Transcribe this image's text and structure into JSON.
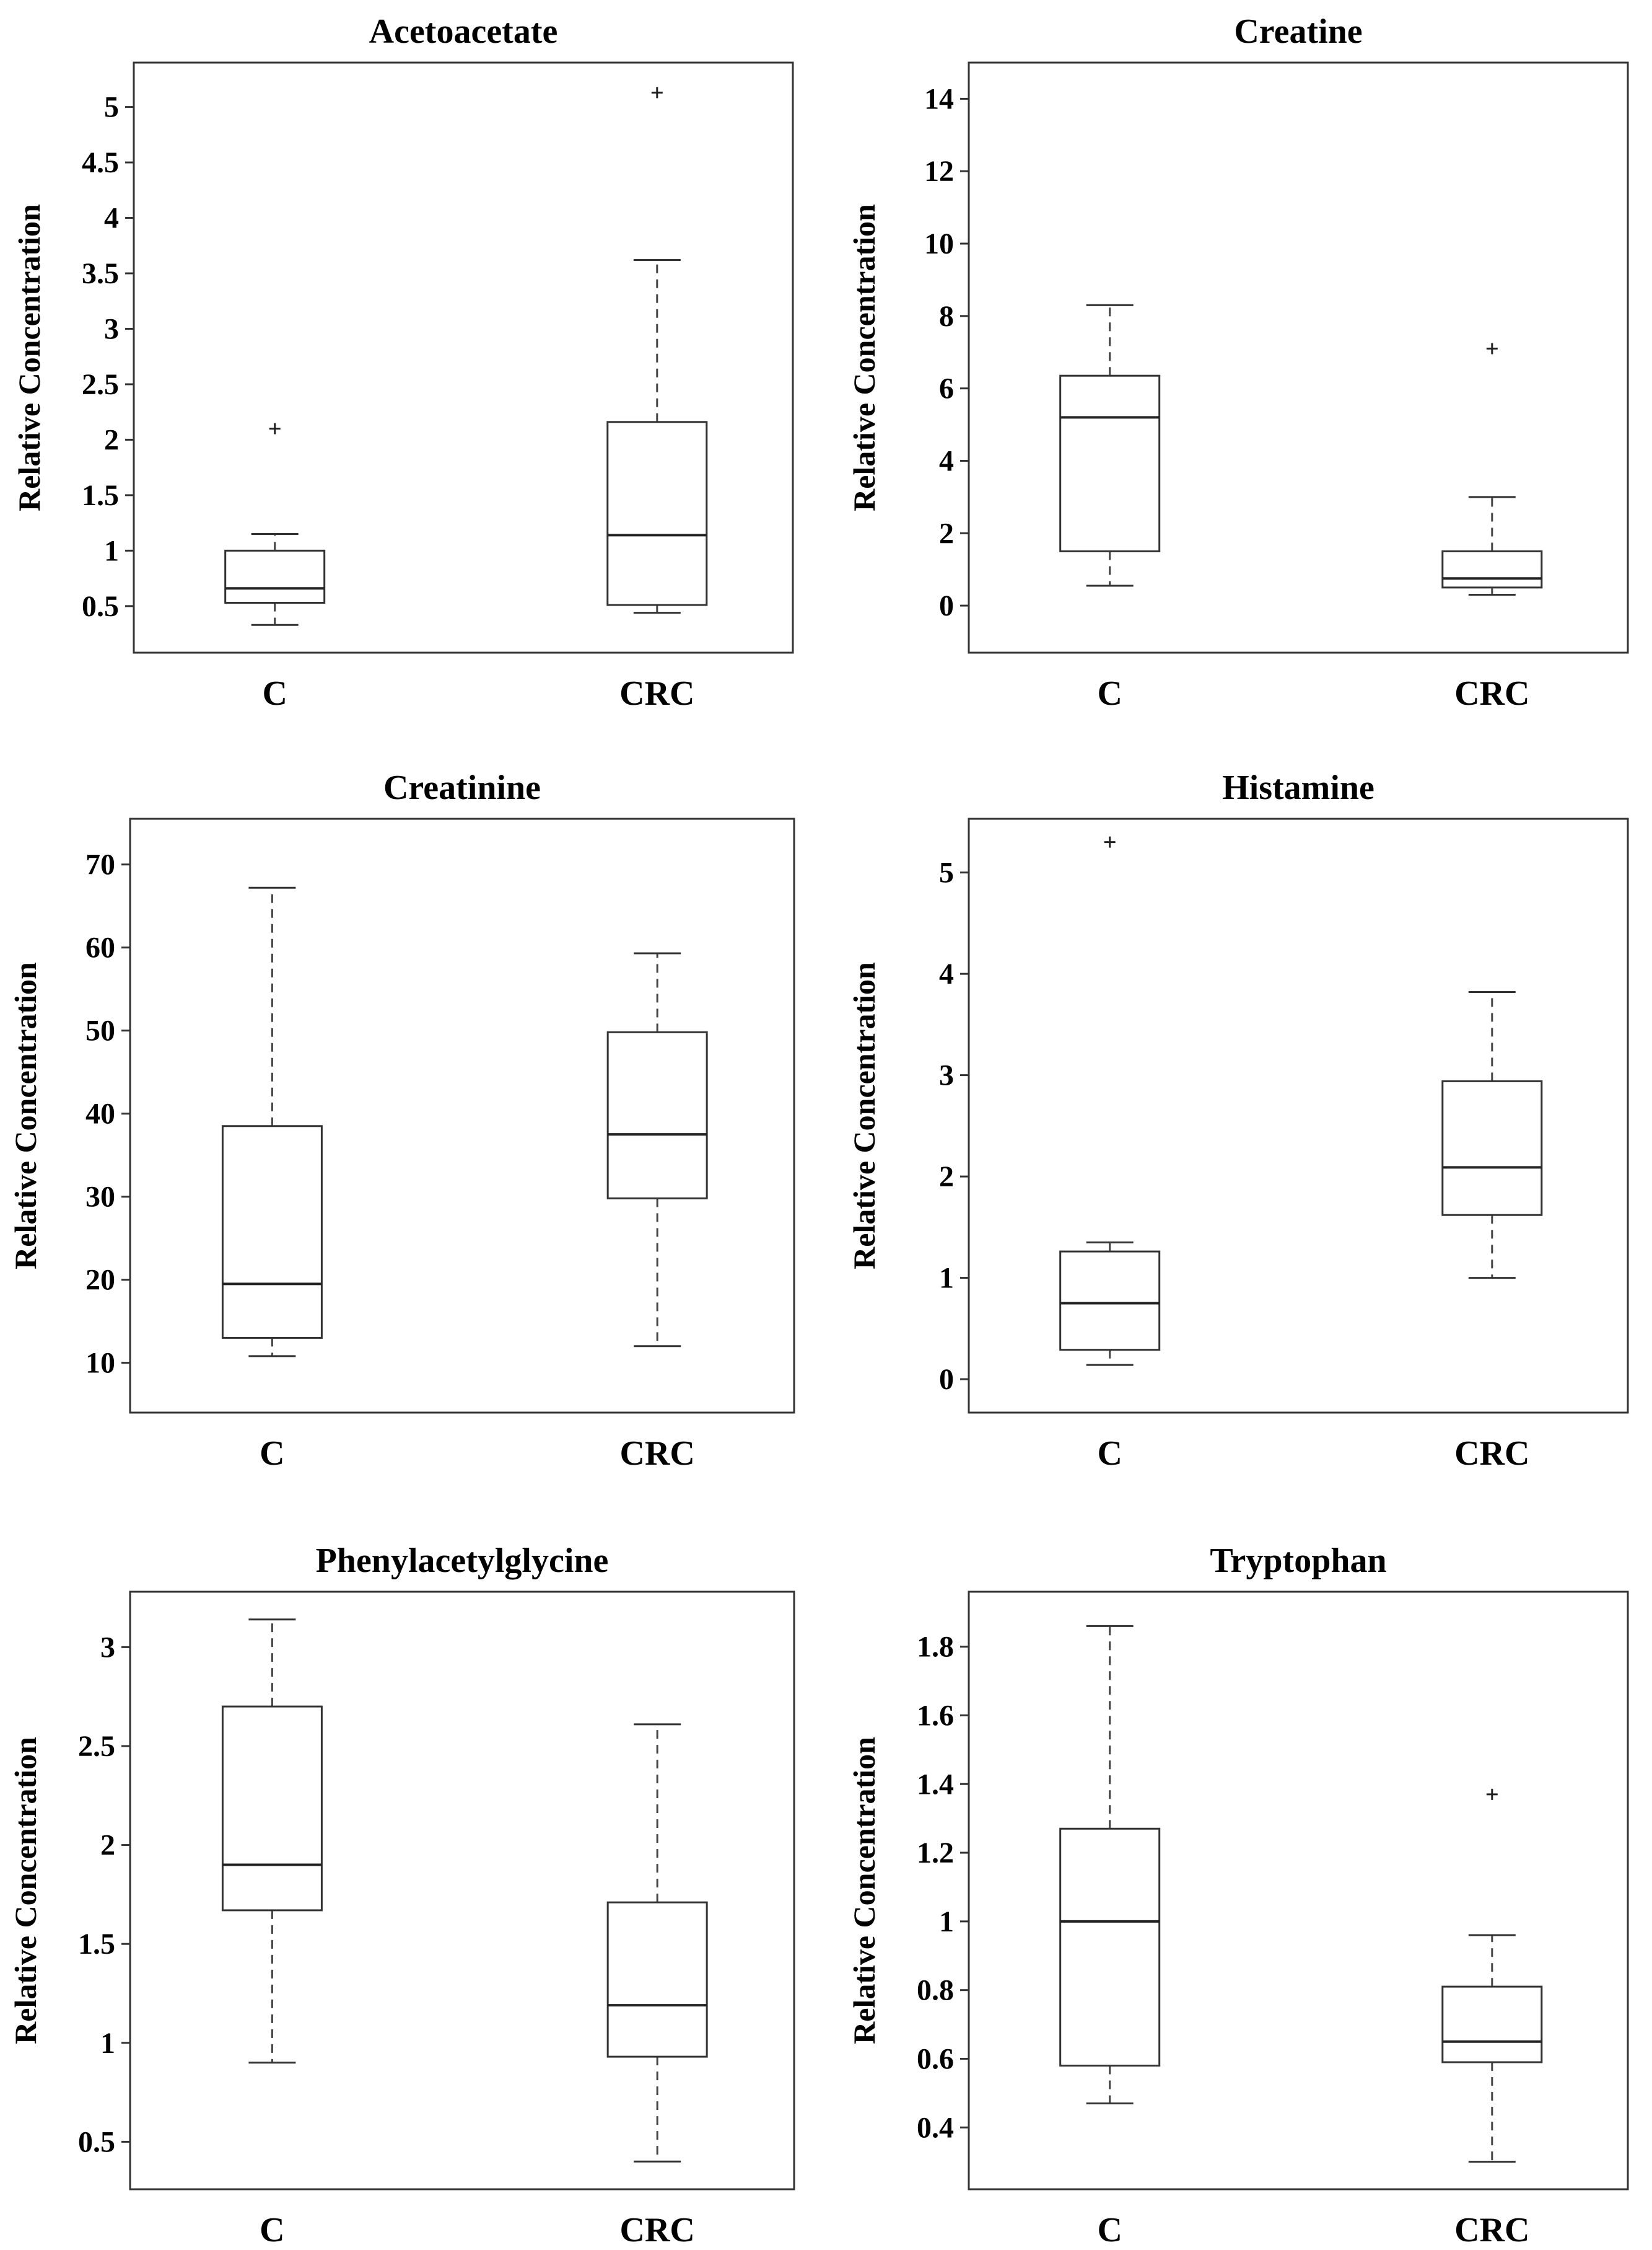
{
  "chart_data": [
    {
      "type": "box",
      "title": "Acetoacetate",
      "ylabel": "Relative Concentration",
      "categories": [
        "C",
        "CRC"
      ],
      "ylim": [
        0.08,
        5.4
      ],
      "yticks": [
        0.5,
        1,
        1.5,
        2,
        2.5,
        3,
        3.5,
        4,
        4.5,
        5
      ],
      "ytick_labels": [
        "0.5",
        "1",
        "1.5",
        "2",
        "2.5",
        "3",
        "3.5",
        "4",
        "4.5",
        "5"
      ],
      "boxes": [
        {
          "category": "C",
          "whisker_low": 0.33,
          "q1": 0.53,
          "median": 0.66,
          "q3": 1.0,
          "whisker_high": 1.15,
          "outliers": [
            2.1
          ]
        },
        {
          "category": "CRC",
          "whisker_low": 0.44,
          "q1": 0.51,
          "median": 1.14,
          "q3": 2.16,
          "whisker_high": 3.62,
          "outliers": [
            5.13
          ]
        }
      ]
    },
    {
      "type": "box",
      "title": "Creatine",
      "ylabel": "Relative Concentration",
      "categories": [
        "C",
        "CRC"
      ],
      "ylim": [
        -1.3,
        15
      ],
      "yticks": [
        0,
        2,
        4,
        6,
        8,
        10,
        12,
        14
      ],
      "ytick_labels": [
        "0",
        "2",
        "4",
        "6",
        "8",
        "10",
        "12",
        "14"
      ],
      "boxes": [
        {
          "category": "C",
          "whisker_low": 0.55,
          "q1": 1.5,
          "median": 5.2,
          "q3": 6.35,
          "whisker_high": 8.3,
          "outliers": []
        },
        {
          "category": "CRC",
          "whisker_low": 0.3,
          "q1": 0.5,
          "median": 0.75,
          "q3": 1.5,
          "whisker_high": 3.0,
          "outliers": [
            7.1
          ]
        }
      ]
    },
    {
      "type": "box",
      "title": "Creatinine",
      "ylabel": "Relative Concentration",
      "categories": [
        "C",
        "CRC"
      ],
      "ylim": [
        4,
        75.5
      ],
      "yticks": [
        10,
        20,
        30,
        40,
        50,
        60,
        70
      ],
      "ytick_labels": [
        "10",
        "20",
        "30",
        "40",
        "50",
        "60",
        "70"
      ],
      "boxes": [
        {
          "category": "C",
          "whisker_low": 10.8,
          "q1": 13.0,
          "median": 19.5,
          "q3": 38.5,
          "whisker_high": 67.2,
          "outliers": []
        },
        {
          "category": "CRC",
          "whisker_low": 12.0,
          "q1": 29.8,
          "median": 37.5,
          "q3": 49.8,
          "whisker_high": 59.3,
          "outliers": []
        }
      ]
    },
    {
      "type": "box",
      "title": "Histamine",
      "ylabel": "Relative Concentration",
      "categories": [
        "C",
        "CRC"
      ],
      "ylim": [
        -0.33,
        5.53
      ],
      "yticks": [
        0,
        1,
        2,
        3,
        4,
        5
      ],
      "ytick_labels": [
        "0",
        "1",
        "2",
        "3",
        "4",
        "5"
      ],
      "boxes": [
        {
          "category": "C",
          "whisker_low": 0.14,
          "q1": 0.29,
          "median": 0.75,
          "q3": 1.26,
          "whisker_high": 1.35,
          "outliers": [
            5.3
          ]
        },
        {
          "category": "CRC",
          "whisker_low": 1.0,
          "q1": 1.62,
          "median": 2.09,
          "q3": 2.94,
          "whisker_high": 3.82,
          "outliers": []
        }
      ]
    },
    {
      "type": "box",
      "title": "Phenylacetylglycine",
      "ylabel": "Relative Concentration",
      "categories": [
        "C",
        "CRC"
      ],
      "ylim": [
        0.26,
        3.28
      ],
      "yticks": [
        0.5,
        1,
        1.5,
        2,
        2.5,
        3
      ],
      "ytick_labels": [
        "0.5",
        "1",
        "1.5",
        "2",
        "2.5",
        "3"
      ],
      "boxes": [
        {
          "category": "C",
          "whisker_low": 0.9,
          "q1": 1.67,
          "median": 1.9,
          "q3": 2.7,
          "whisker_high": 3.14,
          "outliers": []
        },
        {
          "category": "CRC",
          "whisker_low": 0.4,
          "q1": 0.93,
          "median": 1.19,
          "q3": 1.71,
          "whisker_high": 2.61,
          "outliers": []
        }
      ]
    },
    {
      "type": "box",
      "title": "Tryptophan",
      "ylabel": "Relative Concentration",
      "categories": [
        "C",
        "CRC"
      ],
      "ylim": [
        0.22,
        1.96
      ],
      "yticks": [
        0.4,
        0.6,
        0.8,
        1,
        1.2,
        1.4,
        1.6,
        1.8
      ],
      "ytick_labels": [
        "0.4",
        "0.6",
        "0.8",
        "1",
        "1.2",
        "1.4",
        "1.6",
        "1.8"
      ],
      "boxes": [
        {
          "category": "C",
          "whisker_low": 0.47,
          "q1": 0.58,
          "median": 1.0,
          "q3": 1.27,
          "whisker_high": 1.86,
          "outliers": []
        },
        {
          "category": "CRC",
          "whisker_low": 0.3,
          "q1": 0.59,
          "median": 0.65,
          "q3": 0.81,
          "whisker_high": 0.96,
          "outliers": [
            1.37
          ]
        }
      ]
    }
  ]
}
